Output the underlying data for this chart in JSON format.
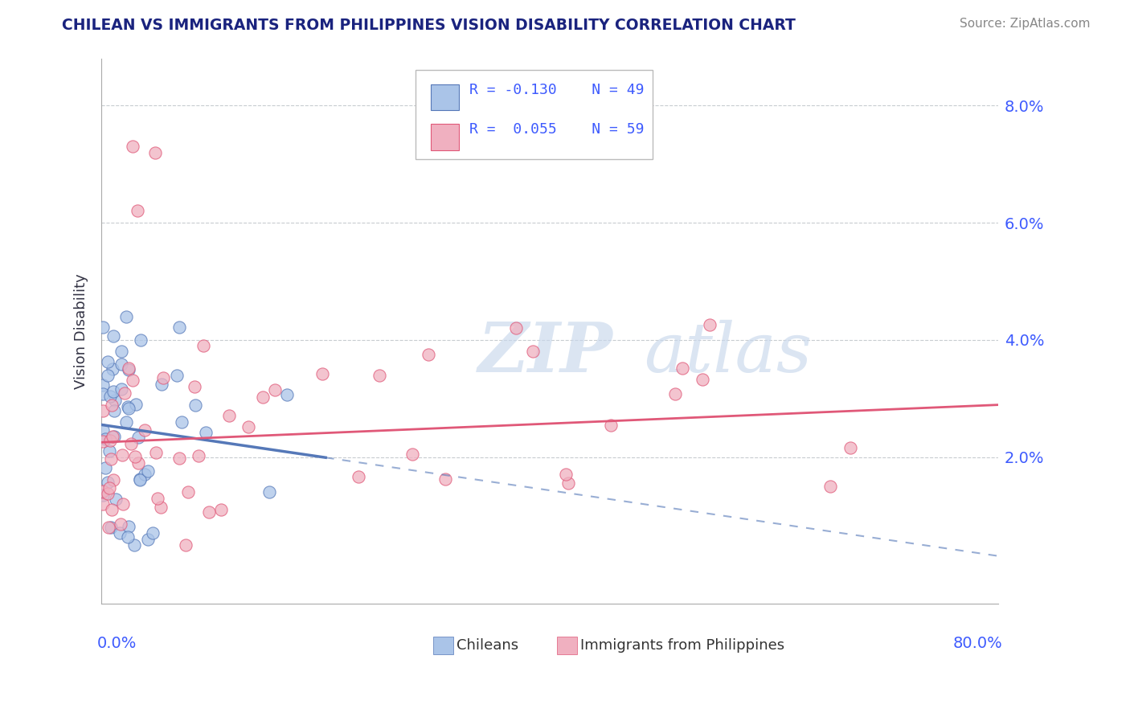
{
  "title": "CHILEAN VS IMMIGRANTS FROM PHILIPPINES VISION DISABILITY CORRELATION CHART",
  "source": "Source: ZipAtlas.com",
  "ylabel": "Vision Disability",
  "ytick_labels": [
    "2.0%",
    "4.0%",
    "6.0%",
    "8.0%"
  ],
  "ytick_values": [
    0.02,
    0.04,
    0.06,
    0.08
  ],
  "xlim": [
    0.0,
    0.8
  ],
  "ylim": [
    -0.005,
    0.088
  ],
  "color_chilean": "#aac4e8",
  "color_philippines": "#f0b0c0",
  "color_chilean_dark": "#5578b8",
  "color_philippines_dark": "#e05878",
  "color_title": "#1a237e",
  "color_tick_labels": "#3d5afe",
  "watermark_color": "#c8d8ec",
  "grid_color": "#c8ccd0",
  "legend_r1": "R = -0.130",
  "legend_n1": "N = 49",
  "legend_r2": "R =  0.055",
  "legend_n2": "N = 59",
  "chi_intercept": 0.0255,
  "chi_slope": -0.028,
  "phil_intercept": 0.0225,
  "phil_slope": 0.008
}
